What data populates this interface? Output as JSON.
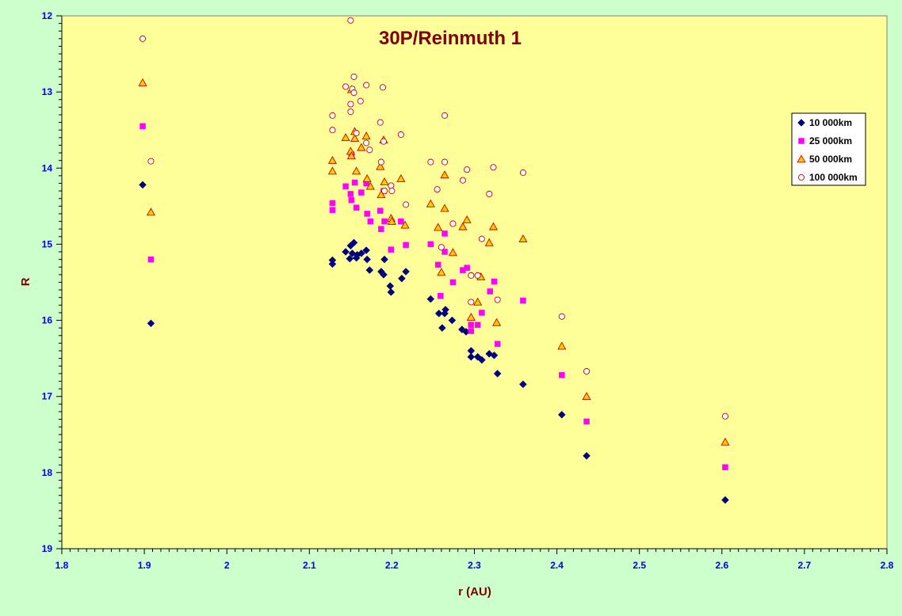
{
  "chart_data": {
    "type": "scatter",
    "title": "30P/Reinmuth 1",
    "xlabel": "r (AU)",
    "ylabel": "R",
    "xlim": [
      1.8,
      2.8
    ],
    "ylim": [
      12,
      19
    ],
    "y_inverted": true,
    "x_ticks": [
      "1.8",
      "1.9",
      "2",
      "2.1",
      "2.2",
      "2.3",
      "2.4",
      "2.5",
      "2.6",
      "2.7",
      "2.8"
    ],
    "y_ticks": [
      "12",
      "13",
      "14",
      "15",
      "16",
      "17",
      "18",
      "19"
    ],
    "grid": false,
    "legend_position": "right",
    "colors": {
      "plot_background": "#ffff99",
      "page_background": "#ccffcc",
      "title": "#800000",
      "ticks": "#0000ee",
      "series_10000": "#000080",
      "series_25000": "#ff00ff",
      "series_50000_fill": "#ffcc00",
      "series_50000_stroke": "#cc0000",
      "series_100000_fill": "#ffffff",
      "series_100000_stroke": "#cc0000"
    },
    "series": [
      {
        "name": "10 000km",
        "marker": "diamond",
        "points": [
          [
            1.898,
            14.22
          ],
          [
            1.908,
            16.04
          ],
          [
            2.128,
            15.21
          ],
          [
            2.128,
            15.26
          ],
          [
            2.144,
            15.1
          ],
          [
            2.149,
            15.19
          ],
          [
            2.15,
            15.02
          ],
          [
            2.152,
            15.12
          ],
          [
            2.154,
            14.98
          ],
          [
            2.157,
            15.18
          ],
          [
            2.158,
            15.14
          ],
          [
            2.163,
            15.12
          ],
          [
            2.169,
            15.08
          ],
          [
            2.17,
            15.2
          ],
          [
            2.173,
            15.34
          ],
          [
            2.187,
            15.36
          ],
          [
            2.19,
            15.4
          ],
          [
            2.191,
            15.2
          ],
          [
            2.198,
            15.55
          ],
          [
            2.199,
            15.63
          ],
          [
            2.212,
            15.45
          ],
          [
            2.217,
            15.36
          ],
          [
            2.247,
            15.72
          ],
          [
            2.257,
            15.91
          ],
          [
            2.261,
            16.1
          ],
          [
            2.264,
            15.91
          ],
          [
            2.265,
            15.86
          ],
          [
            2.273,
            16.0
          ],
          [
            2.285,
            16.12
          ],
          [
            2.29,
            16.15
          ],
          [
            2.296,
            16.4
          ],
          [
            2.296,
            16.48
          ],
          [
            2.304,
            16.48
          ],
          [
            2.309,
            16.52
          ],
          [
            2.318,
            16.44
          ],
          [
            2.324,
            16.46
          ],
          [
            2.328,
            16.7
          ],
          [
            2.359,
            16.84
          ],
          [
            2.406,
            17.24
          ],
          [
            2.436,
            17.78
          ],
          [
            2.604,
            18.36
          ]
        ]
      },
      {
        "name": "25 000km",
        "marker": "square",
        "points": [
          [
            1.898,
            13.45
          ],
          [
            1.908,
            15.2
          ],
          [
            2.128,
            14.46
          ],
          [
            2.128,
            14.55
          ],
          [
            2.144,
            14.24
          ],
          [
            2.15,
            14.34
          ],
          [
            2.151,
            14.42
          ],
          [
            2.151,
            13.82
          ],
          [
            2.155,
            14.19
          ],
          [
            2.157,
            14.52
          ],
          [
            2.163,
            14.32
          ],
          [
            2.169,
            14.2
          ],
          [
            2.17,
            14.6
          ],
          [
            2.174,
            14.7
          ],
          [
            2.186,
            14.56
          ],
          [
            2.187,
            14.8
          ],
          [
            2.19,
            14.3
          ],
          [
            2.191,
            14.7
          ],
          [
            2.199,
            15.07
          ],
          [
            2.211,
            14.7
          ],
          [
            2.217,
            15.01
          ],
          [
            2.247,
            15.0
          ],
          [
            2.256,
            15.27
          ],
          [
            2.259,
            15.68
          ],
          [
            2.264,
            14.86
          ],
          [
            2.264,
            15.1
          ],
          [
            2.274,
            15.5
          ],
          [
            2.286,
            15.34
          ],
          [
            2.291,
            15.31
          ],
          [
            2.296,
            16.06
          ],
          [
            2.296,
            16.14
          ],
          [
            2.304,
            16.06
          ],
          [
            2.309,
            15.9
          ],
          [
            2.319,
            15.62
          ],
          [
            2.324,
            15.49
          ],
          [
            2.328,
            16.31
          ],
          [
            2.359,
            15.74
          ],
          [
            2.406,
            16.72
          ],
          [
            2.436,
            17.33
          ],
          [
            2.604,
            17.93
          ]
        ]
      },
      {
        "name": "50 000km",
        "marker": "triangle",
        "points": [
          [
            1.898,
            12.88
          ],
          [
            1.908,
            14.58
          ],
          [
            2.128,
            13.9
          ],
          [
            2.128,
            14.04
          ],
          [
            2.144,
            13.6
          ],
          [
            2.15,
            13.78
          ],
          [
            2.151,
            13.84
          ],
          [
            2.151,
            12.97
          ],
          [
            2.155,
            13.52
          ],
          [
            2.155,
            13.61
          ],
          [
            2.157,
            14.04
          ],
          [
            2.163,
            13.73
          ],
          [
            2.169,
            13.58
          ],
          [
            2.17,
            14.14
          ],
          [
            2.174,
            14.24
          ],
          [
            2.186,
            13.98
          ],
          [
            2.187,
            14.35
          ],
          [
            2.19,
            13.63
          ],
          [
            2.191,
            14.18
          ],
          [
            2.199,
            14.66
          ],
          [
            2.2,
            14.7
          ],
          [
            2.211,
            14.14
          ],
          [
            2.216,
            14.75
          ],
          [
            2.247,
            14.47
          ],
          [
            2.256,
            14.78
          ],
          [
            2.26,
            15.37
          ],
          [
            2.264,
            14.09
          ],
          [
            2.264,
            14.53
          ],
          [
            2.274,
            15.11
          ],
          [
            2.286,
            14.77
          ],
          [
            2.291,
            14.68
          ],
          [
            2.296,
            15.96
          ],
          [
            2.304,
            15.76
          ],
          [
            2.308,
            15.43
          ],
          [
            2.318,
            14.98
          ],
          [
            2.323,
            14.77
          ],
          [
            2.327,
            16.03
          ],
          [
            2.359,
            14.93
          ],
          [
            2.406,
            16.34
          ],
          [
            2.436,
            17.0
          ],
          [
            2.604,
            17.6
          ]
        ]
      },
      {
        "name": "100 000km",
        "marker": "circle",
        "points": [
          [
            1.898,
            12.3
          ],
          [
            1.908,
            13.91
          ],
          [
            2.128,
            13.31
          ],
          [
            2.128,
            13.5
          ],
          [
            2.144,
            12.93
          ],
          [
            2.15,
            12.06
          ],
          [
            2.15,
            13.26
          ],
          [
            2.15,
            13.16
          ],
          [
            2.152,
            12.96
          ],
          [
            2.154,
            12.8
          ],
          [
            2.154,
            13.01
          ],
          [
            2.157,
            13.54
          ],
          [
            2.162,
            13.12
          ],
          [
            2.169,
            13.67
          ],
          [
            2.169,
            12.91
          ],
          [
            2.173,
            13.76
          ],
          [
            2.186,
            13.4
          ],
          [
            2.187,
            13.92
          ],
          [
            2.189,
            12.94
          ],
          [
            2.19,
            13.65
          ],
          [
            2.191,
            14.3
          ],
          [
            2.199,
            14.23
          ],
          [
            2.2,
            14.3
          ],
          [
            2.211,
            13.56
          ],
          [
            2.217,
            14.48
          ],
          [
            2.247,
            13.92
          ],
          [
            2.255,
            14.28
          ],
          [
            2.26,
            15.04
          ],
          [
            2.264,
            13.31
          ],
          [
            2.264,
            13.92
          ],
          [
            2.274,
            14.73
          ],
          [
            2.286,
            14.16
          ],
          [
            2.291,
            14.02
          ],
          [
            2.296,
            15.41
          ],
          [
            2.296,
            15.76
          ],
          [
            2.304,
            15.41
          ],
          [
            2.309,
            14.93
          ],
          [
            2.318,
            14.34
          ],
          [
            2.323,
            13.99
          ],
          [
            2.328,
            15.73
          ],
          [
            2.359,
            14.06
          ],
          [
            2.406,
            15.95
          ],
          [
            2.436,
            16.67
          ],
          [
            2.604,
            17.26
          ]
        ]
      }
    ]
  }
}
